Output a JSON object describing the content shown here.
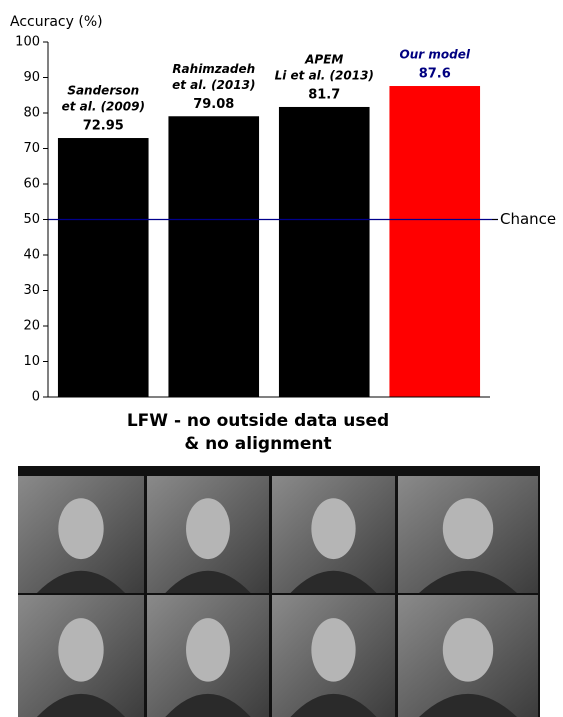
{
  "chart_data": {
    "type": "bar",
    "ylabel": "Accuracy (%)",
    "title": [
      "LFW - no outside data used",
      "& no alignment"
    ],
    "categories": [
      [
        "Sanderson",
        "et al. (2009)"
      ],
      [
        "Rahimzadeh",
        "et al.  (2013)"
      ],
      [
        "APEM",
        "Li et al. (2013)"
      ],
      [
        "Our model"
      ]
    ],
    "values": [
      72.95,
      79.08,
      81.7,
      87.6
    ],
    "colors": [
      "#000000",
      "#000000",
      "#000000",
      "#ff0000"
    ],
    "label_colors": [
      "#000000",
      "#000000",
      "#000000",
      "#000080"
    ],
    "ylim": [
      0,
      100
    ],
    "yticks": [
      0,
      10,
      20,
      30,
      40,
      50,
      60,
      70,
      80,
      90,
      100
    ],
    "reference_line": {
      "value": 50,
      "label": "Chance",
      "color": "#00008b"
    }
  }
}
